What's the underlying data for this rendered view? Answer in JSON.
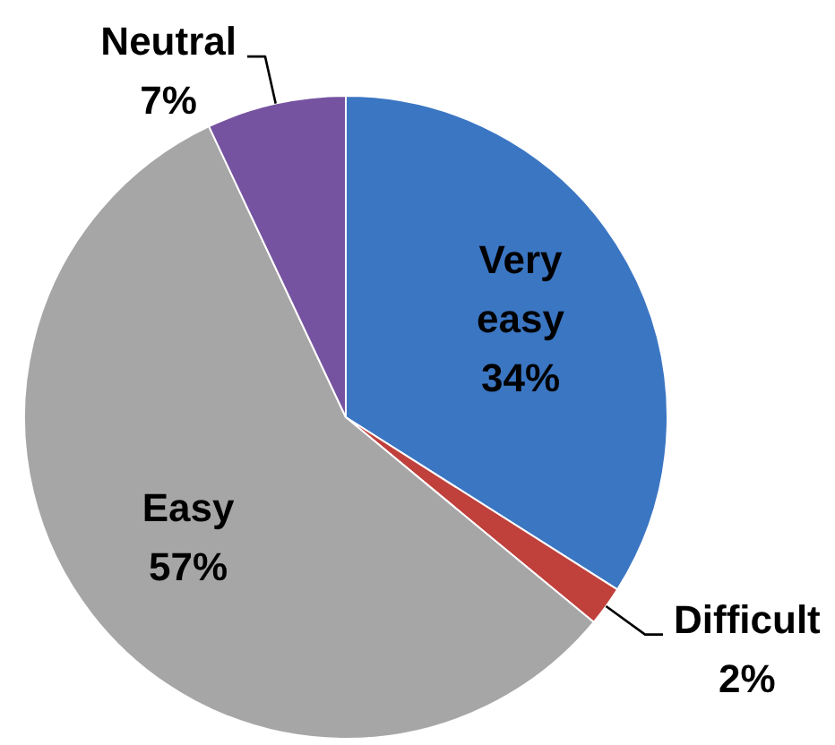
{
  "chart_data": {
    "type": "pie",
    "categories": [
      "Very easy",
      "Difficult",
      "Easy",
      "Neutral"
    ],
    "values": [
      34,
      2,
      57,
      7
    ],
    "colors": [
      "#3b76c3",
      "#c0403c",
      "#a6a6a6",
      "#7653a0"
    ],
    "value_labels": [
      "34%",
      "2%",
      "57%",
      "7%"
    ]
  }
}
